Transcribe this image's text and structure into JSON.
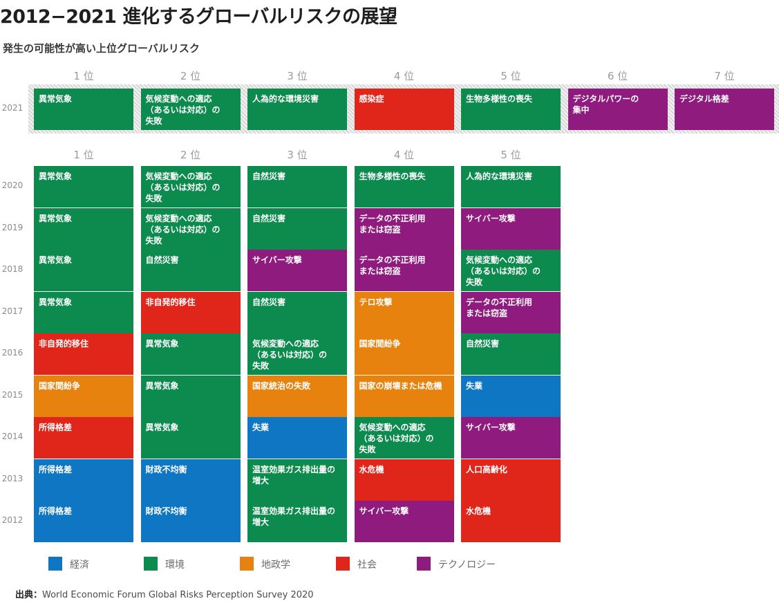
{
  "title": "2012−2021 進化するグローバルリスクの展望",
  "subtitle": "発生の可能性が高い上位グローバルリスク",
  "colors": {
    "economy": "#0f76c4",
    "environment": "#0d8a4e",
    "geopolitics": "#e8820f",
    "society": "#e0251b",
    "technology": "#8e1b7d"
  },
  "legend": {
    "economy": "経済",
    "environment": "環境",
    "geopolitics": "地政学",
    "society": "社会",
    "technology": "テクノロジー"
  },
  "source_label": "出典：",
  "source_text": "World Economic Forum Global Risks Perception Survey 2020",
  "chart_data": {
    "type": "table",
    "title": "2012−2021 進化するグローバルリスクの展望",
    "subtitle": "発生の可能性が高い上位グローバルリスク",
    "ranks_2021": [
      "1 位",
      "2 位",
      "3 位",
      "4 位",
      "5 位",
      "6 位",
      "7 位"
    ],
    "ranks": [
      "1 位",
      "2 位",
      "3 位",
      "4 位",
      "5 位"
    ],
    "rows": [
      {
        "year": "2021",
        "cells": [
          {
            "label": "異常気象",
            "category": "environment"
          },
          {
            "label": "気候変動への適応\n（あるいは対応）の\n失敗",
            "category": "environment"
          },
          {
            "label": "人為的な環境災害",
            "category": "environment"
          },
          {
            "label": "感染症",
            "category": "society"
          },
          {
            "label": "生物多様性の喪失",
            "category": "environment"
          },
          {
            "label": "デジタルパワーの\n集中",
            "category": "technology"
          },
          {
            "label": "デジタル格差",
            "category": "technology"
          }
        ]
      },
      {
        "year": "2020",
        "cells": [
          {
            "label": "異常気象",
            "category": "environment"
          },
          {
            "label": "気候変動への適応\n（あるいは対応）の\n失敗",
            "category": "environment"
          },
          {
            "label": "自然災害",
            "category": "environment"
          },
          {
            "label": "生物多様性の喪失",
            "category": "environment"
          },
          {
            "label": "人為的な環境災害",
            "category": "environment"
          }
        ]
      },
      {
        "year": "2019",
        "cells": [
          {
            "label": "異常気象",
            "category": "environment"
          },
          {
            "label": "気候変動への適応\n（あるいは対応）の\n失敗",
            "category": "environment"
          },
          {
            "label": "自然災害",
            "category": "environment"
          },
          {
            "label": "データの不正利用\nまたは窃盗",
            "category": "technology"
          },
          {
            "label": "サイバー攻撃",
            "category": "technology"
          }
        ]
      },
      {
        "year": "2018",
        "cells": [
          {
            "label": "異常気象",
            "category": "environment"
          },
          {
            "label": "自然災害",
            "category": "environment"
          },
          {
            "label": "サイバー攻撃",
            "category": "technology"
          },
          {
            "label": "データの不正利用\nまたは窃盗",
            "category": "technology"
          },
          {
            "label": "気候変動への適応\n（あるいは対応）の\n失敗",
            "category": "environment"
          }
        ]
      },
      {
        "year": "2017",
        "cells": [
          {
            "label": "異常気象",
            "category": "environment"
          },
          {
            "label": "非自発的移住",
            "category": "society"
          },
          {
            "label": "自然災害",
            "category": "environment"
          },
          {
            "label": "テロ攻撃",
            "category": "geopolitics"
          },
          {
            "label": "データの不正利用\nまたは窃盗",
            "category": "technology"
          }
        ]
      },
      {
        "year": "2016",
        "cells": [
          {
            "label": "非自発的移住",
            "category": "society"
          },
          {
            "label": "異常気象",
            "category": "environment"
          },
          {
            "label": "気候変動への適応\n（あるいは対応）の\n失敗",
            "category": "environment"
          },
          {
            "label": "国家間紛争",
            "category": "geopolitics"
          },
          {
            "label": "自然災害",
            "category": "environment"
          }
        ]
      },
      {
        "year": "2015",
        "cells": [
          {
            "label": "国家間紛争",
            "category": "geopolitics"
          },
          {
            "label": "異常気象",
            "category": "environment"
          },
          {
            "label": "国家統治の失敗",
            "category": "geopolitics"
          },
          {
            "label": "国家の崩壊または危機",
            "category": "geopolitics"
          },
          {
            "label": "失業",
            "category": "economy"
          }
        ]
      },
      {
        "year": "2014",
        "cells": [
          {
            "label": "所得格差",
            "category": "society"
          },
          {
            "label": "異常気象",
            "category": "environment"
          },
          {
            "label": "失業",
            "category": "economy"
          },
          {
            "label": "気候変動への適応\n（あるいは対応）の\n失敗",
            "category": "environment"
          },
          {
            "label": "サイバー攻撃",
            "category": "technology"
          }
        ]
      },
      {
        "year": "2013",
        "cells": [
          {
            "label": "所得格差",
            "category": "economy"
          },
          {
            "label": "財政不均衡",
            "category": "economy"
          },
          {
            "label": "温室効果ガス排出量の\n増大",
            "category": "environment"
          },
          {
            "label": "水危機",
            "category": "society"
          },
          {
            "label": "人口高齢化",
            "category": "society"
          }
        ]
      },
      {
        "year": "2012",
        "cells": [
          {
            "label": "所得格差",
            "category": "economy"
          },
          {
            "label": "財政不均衡",
            "category": "economy"
          },
          {
            "label": "温室効果ガス排出量の\n増大",
            "category": "environment"
          },
          {
            "label": "サイバー攻撃",
            "category": "technology"
          },
          {
            "label": "水危機",
            "category": "society"
          }
        ]
      }
    ]
  }
}
